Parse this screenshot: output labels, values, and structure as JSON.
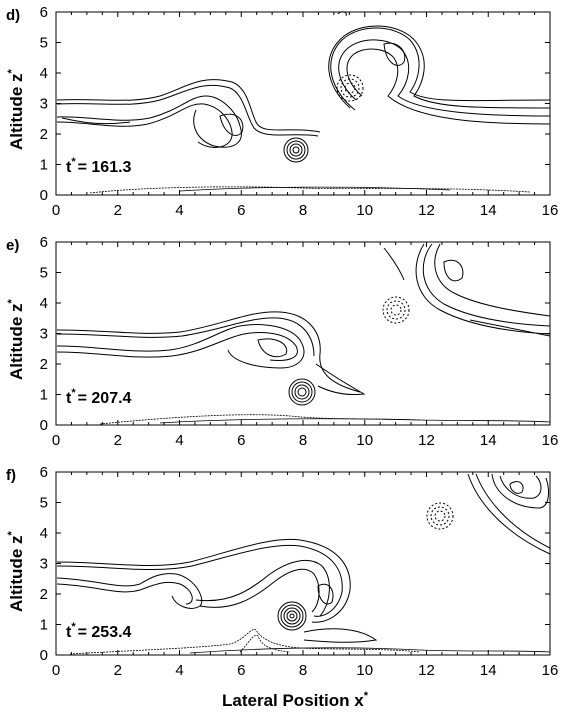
{
  "chart_data": [
    {
      "type": "contour",
      "panel_label": "d)",
      "time_label_prefix": "t",
      "time_label_sup": "*",
      "time_label_value": "= 161.3",
      "xlim": [
        0,
        16
      ],
      "ylim": [
        0,
        6
      ],
      "xticks": [
        "0",
        "2",
        "4",
        "6",
        "8",
        "10",
        "12",
        "14",
        "16"
      ],
      "yticks": [
        "0",
        "1",
        "2",
        "3",
        "4",
        "5",
        "6"
      ],
      "ylabel": "Altitude z",
      "ylabel_sup": "*",
      "features": {
        "layer_y": [
          2.5,
          2.75,
          3.0,
          3.1
        ],
        "rotor1_center": [
          5.6,
          2.4
        ],
        "vortex_center": [
          7.7,
          1.5
        ],
        "rotor2_center": [
          10.3,
          3.5
        ],
        "small_eddy_center": [
          9.6,
          3.4
        ],
        "top_eddy_center": [
          8.4,
          5.9
        ]
      }
    },
    {
      "type": "contour",
      "panel_label": "e)",
      "time_label_prefix": "t",
      "time_label_sup": "*",
      "time_label_value": "= 207.4",
      "xlim": [
        0,
        16
      ],
      "ylim": [
        0,
        6
      ],
      "xticks": [
        "0",
        "2",
        "4",
        "6",
        "8",
        "10",
        "12",
        "14",
        "16"
      ],
      "yticks": [
        "0",
        "1",
        "2",
        "3",
        "4",
        "5",
        "6"
      ],
      "ylabel": "Altitude z",
      "ylabel_sup": "*",
      "features": {
        "layer_y": [
          2.5,
          2.75,
          3.0,
          3.1
        ],
        "rotor1_center": [
          7.8,
          2.4
        ],
        "vortex_center": [
          7.9,
          1.0
        ],
        "rotor2_center": [
          12.9,
          4.9
        ],
        "small_eddy_center": [
          11.1,
          3.5
        ]
      }
    },
    {
      "type": "contour",
      "panel_label": "f)",
      "time_label_prefix": "t",
      "time_label_sup": "*",
      "time_label_value": "= 253.4",
      "xlim": [
        0,
        16
      ],
      "ylim": [
        0,
        6
      ],
      "xticks": [
        "0",
        "2",
        "4",
        "6",
        "8",
        "10",
        "12",
        "14",
        "16"
      ],
      "yticks": [
        "0",
        "1",
        "2",
        "3",
        "4",
        "5",
        "6"
      ],
      "ylabel": "Altitude z",
      "ylabel_sup": "*",
      "xlabel": "Lateral Position x",
      "xlabel_sup": "*",
      "features": {
        "layer_y": [
          2.5,
          2.75,
          3.0,
          3.1
        ],
        "rotor1_center": [
          8.6,
          2.4
        ],
        "vortex_center": [
          7.6,
          1.25
        ],
        "rotor2_center": [
          15.0,
          5.5
        ],
        "small_eddy_center": [
          12.6,
          4.3
        ]
      }
    }
  ]
}
